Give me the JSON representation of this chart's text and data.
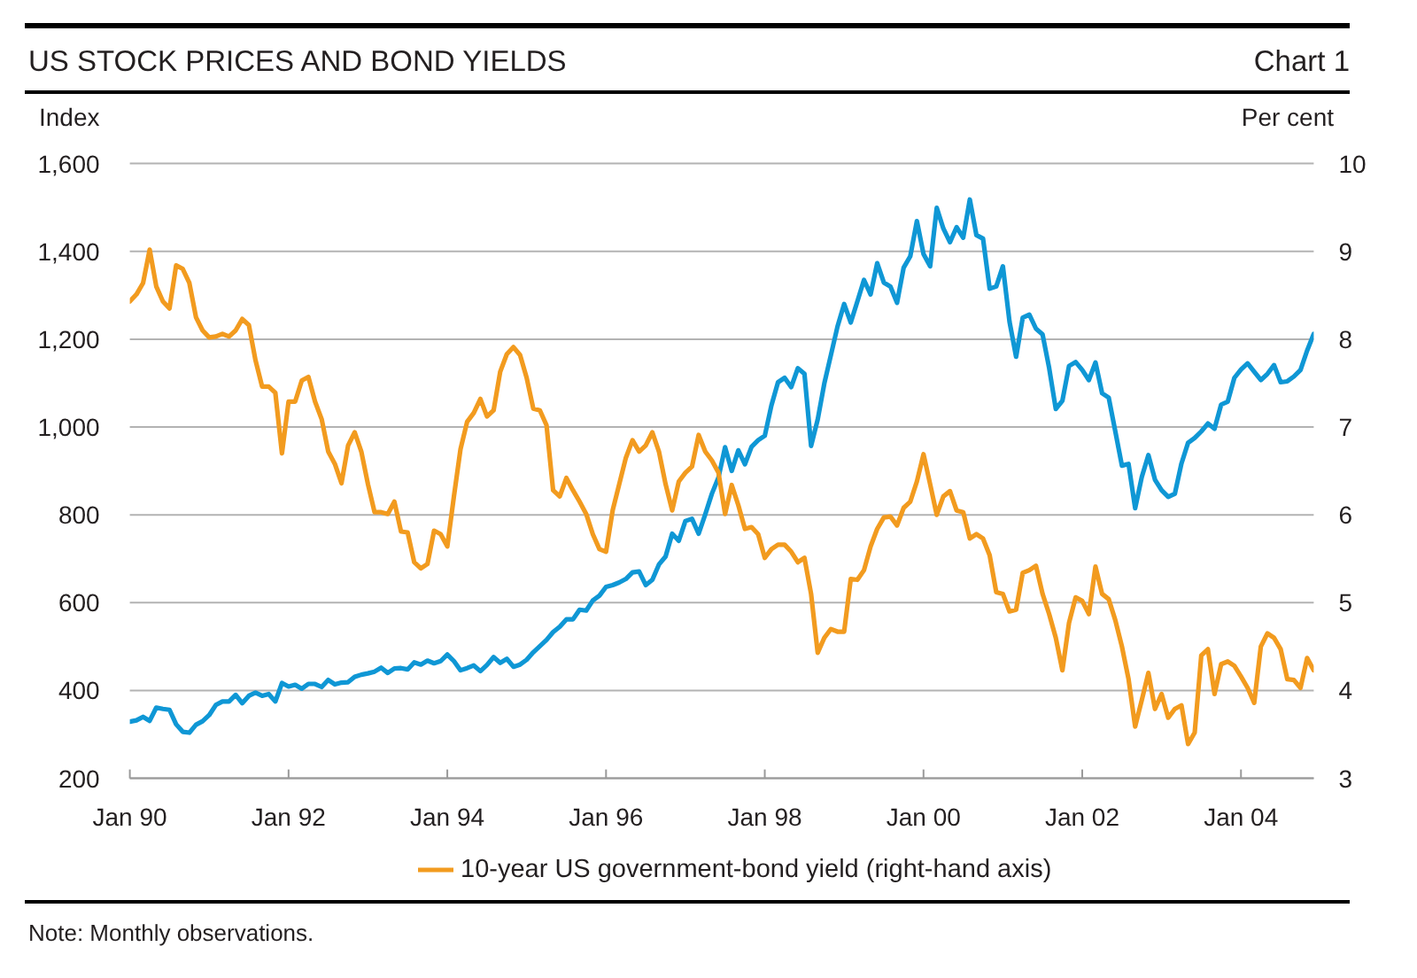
{
  "chart_data": {
    "type": "line",
    "title": "US STOCK PRICES AND BOND YIELDS",
    "subtitle": "Chart 1",
    "ylabel": "Index",
    "y2label": "Per cent",
    "annotations": [
      "Note: Monthly observations."
    ],
    "x": [
      "1990-01",
      "1990-02",
      "1990-03",
      "1990-04",
      "1990-05",
      "1990-06",
      "1990-07",
      "1990-08",
      "1990-09",
      "1990-10",
      "1990-11",
      "1990-12",
      "1991-01",
      "1991-02",
      "1991-03",
      "1991-04",
      "1991-05",
      "1991-06",
      "1991-07",
      "1991-08",
      "1991-09",
      "1991-10",
      "1991-11",
      "1991-12",
      "1992-01",
      "1992-02",
      "1992-03",
      "1992-04",
      "1992-05",
      "1992-06",
      "1992-07",
      "1992-08",
      "1992-09",
      "1992-10",
      "1992-11",
      "1992-12",
      "1993-01",
      "1993-02",
      "1993-03",
      "1993-04",
      "1993-05",
      "1993-06",
      "1993-07",
      "1993-08",
      "1993-09",
      "1993-10",
      "1993-11",
      "1993-12",
      "1994-01",
      "1994-02",
      "1994-03",
      "1994-04",
      "1994-05",
      "1994-06",
      "1994-07",
      "1994-08",
      "1994-09",
      "1994-10",
      "1994-11",
      "1994-12",
      "1995-01",
      "1995-02",
      "1995-03",
      "1995-04",
      "1995-05",
      "1995-06",
      "1995-07",
      "1995-08",
      "1995-09",
      "1995-10",
      "1995-11",
      "1995-12",
      "1996-01",
      "1996-02",
      "1996-03",
      "1996-04",
      "1996-05",
      "1996-06",
      "1996-07",
      "1996-08",
      "1996-09",
      "1996-10",
      "1996-11",
      "1996-12",
      "1997-01",
      "1997-02",
      "1997-03",
      "1997-04",
      "1997-05",
      "1997-06",
      "1997-07",
      "1997-08",
      "1997-09",
      "1997-10",
      "1997-11",
      "1997-12",
      "1998-01",
      "1998-02",
      "1998-03",
      "1998-04",
      "1998-05",
      "1998-06",
      "1998-07",
      "1998-08",
      "1998-09",
      "1998-10",
      "1998-11",
      "1998-12",
      "1999-01",
      "1999-02",
      "1999-03",
      "1999-04",
      "1999-05",
      "1999-06",
      "1999-07",
      "1999-08",
      "1999-09",
      "1999-10",
      "1999-11",
      "1999-12",
      "2000-01",
      "2000-02",
      "2000-03",
      "2000-04",
      "2000-05",
      "2000-06",
      "2000-07",
      "2000-08",
      "2000-09",
      "2000-10",
      "2000-11",
      "2000-12",
      "2001-01",
      "2001-02",
      "2001-03",
      "2001-04",
      "2001-05",
      "2001-06",
      "2001-07",
      "2001-08",
      "2001-09",
      "2001-10",
      "2001-11",
      "2001-12",
      "2002-01",
      "2002-02",
      "2002-03",
      "2002-04",
      "2002-05",
      "2002-06",
      "2002-07",
      "2002-08",
      "2002-09",
      "2002-10",
      "2002-11",
      "2002-12",
      "2003-01",
      "2003-02",
      "2003-03",
      "2003-04",
      "2003-05",
      "2003-06",
      "2003-07",
      "2003-08",
      "2003-09",
      "2003-10",
      "2003-11",
      "2003-12",
      "2004-01",
      "2004-02",
      "2004-03",
      "2004-04",
      "2004-05",
      "2004-06",
      "2004-07",
      "2004-08",
      "2004-09",
      "2004-10",
      "2004-11",
      "2004-12"
    ],
    "xlim": [
      "1990-01",
      "2004-12"
    ],
    "xticks": [
      {
        "value": "1990-01",
        "label": "Jan 90"
      },
      {
        "value": "1992-01",
        "label": "Jan 92"
      },
      {
        "value": "1994-01",
        "label": "Jan 94"
      },
      {
        "value": "1996-01",
        "label": "Jan 96"
      },
      {
        "value": "1998-01",
        "label": "Jan 98"
      },
      {
        "value": "2000-01",
        "label": "Jan 00"
      },
      {
        "value": "2002-01",
        "label": "Jan 02"
      },
      {
        "value": "2004-01",
        "label": "Jan 04"
      }
    ],
    "ylim": [
      200,
      1600
    ],
    "yticks": [
      200,
      400,
      600,
      800,
      {
        "value": 1000,
        "label": "1,000"
      },
      {
        "value": 1200,
        "label": "1,200"
      },
      {
        "value": 1400,
        "label": "1,400"
      },
      {
        "value": 1600,
        "label": "1,600"
      }
    ],
    "y2lim": [
      3,
      10
    ],
    "y2ticks": [
      3,
      4,
      5,
      6,
      7,
      8,
      9,
      10
    ],
    "grid": "y",
    "legend": "bottom",
    "series": [
      {
        "color": "#0f97d5",
        "values": [
          329,
          332,
          340,
          331,
          361,
          358,
          356,
          323,
          306,
          304,
          322,
          330,
          344,
          367,
          375,
          375,
          390,
          371,
          388,
          395,
          388,
          392,
          375,
          417,
          409,
          413,
          404,
          415,
          415,
          408,
          424,
          414,
          418,
          419,
          431,
          436,
          439,
          443,
          452,
          440,
          450,
          451,
          448,
          464,
          459,
          468,
          462,
          467,
          482,
          467,
          446,
          451,
          457,
          444,
          458,
          476,
          463,
          472,
          454,
          459,
          470,
          487,
          501,
          515,
          533,
          545,
          562,
          562,
          584,
          582,
          605,
          616,
          636,
          640,
          646,
          654,
          669,
          671,
          640,
          652,
          687,
          705,
          757,
          741,
          786,
          791,
          757,
          801,
          848,
          885,
          954,
          900,
          947,
          915,
          955,
          970,
          980,
          1049,
          1102,
          1112,
          1091,
          1134,
          1121,
          957,
          1017,
          1099,
          1164,
          1229,
          1280,
          1238,
          1286,
          1335,
          1302,
          1373,
          1329,
          1320,
          1283,
          1363,
          1389,
          1469,
          1394,
          1366,
          1499,
          1452,
          1421,
          1455,
          1431,
          1518,
          1437,
          1429,
          1315,
          1320,
          1366,
          1240,
          1160,
          1249,
          1256,
          1224,
          1211,
          1134,
          1041,
          1060,
          1139,
          1148,
          1130,
          1107,
          1147,
          1077,
          1067,
          990,
          912,
          916,
          815,
          886,
          936,
          880,
          856,
          841,
          848,
          917,
          964,
          975,
          990,
          1008,
          996,
          1051,
          1058,
          1112,
          1131,
          1145,
          1126,
          1107,
          1121,
          1141,
          1102,
          1104,
          1115,
          1130,
          1174,
          1212
        ]
      },
      {
        "name": "10-year US government-bond yield (right-hand axis)",
        "color": "#f29b1f",
        "axis": "y2",
        "values": [
          8.43,
          8.51,
          8.64,
          9.02,
          8.6,
          8.43,
          8.35,
          8.84,
          8.8,
          8.64,
          8.25,
          8.1,
          8.02,
          8.03,
          8.06,
          8.03,
          8.1,
          8.23,
          8.16,
          7.76,
          7.46,
          7.46,
          7.39,
          6.7,
          7.29,
          7.29,
          7.53,
          7.57,
          7.29,
          7.09,
          6.72,
          6.58,
          6.36,
          6.79,
          6.94,
          6.72,
          6.35,
          6.03,
          6.03,
          6.01,
          6.15,
          5.81,
          5.8,
          5.46,
          5.39,
          5.44,
          5.82,
          5.78,
          5.64,
          6.21,
          6.75,
          7.06,
          7.16,
          7.32,
          7.12,
          7.19,
          7.63,
          7.83,
          7.91,
          7.82,
          7.56,
          7.21,
          7.19,
          7.02,
          6.28,
          6.21,
          6.42,
          6.28,
          6.15,
          6.01,
          5.78,
          5.61,
          5.58,
          6.05,
          6.35,
          6.65,
          6.85,
          6.72,
          6.79,
          6.94,
          6.72,
          6.35,
          6.05,
          6.38,
          6.48,
          6.55,
          6.91,
          6.72,
          6.62,
          6.48,
          6.01,
          6.34,
          6.11,
          5.84,
          5.86,
          5.78,
          5.51,
          5.61,
          5.66,
          5.66,
          5.58,
          5.46,
          5.51,
          5.1,
          4.43,
          4.6,
          4.7,
          4.67,
          4.67,
          5.27,
          5.26,
          5.37,
          5.64,
          5.84,
          5.97,
          5.98,
          5.88,
          6.08,
          6.15,
          6.38,
          6.69,
          6.35,
          6.0,
          6.21,
          6.27,
          6.05,
          6.03,
          5.73,
          5.78,
          5.73,
          5.54,
          5.12,
          5.1,
          4.9,
          4.92,
          5.34,
          5.37,
          5.42,
          5.1,
          4.87,
          4.6,
          4.23,
          4.77,
          5.06,
          5.02,
          4.87,
          5.41,
          5.1,
          5.04,
          4.8,
          4.5,
          4.13,
          3.59,
          3.89,
          4.2,
          3.79,
          3.96,
          3.69,
          3.79,
          3.83,
          3.39,
          3.52,
          4.4,
          4.47,
          3.96,
          4.3,
          4.33,
          4.28,
          4.16,
          4.03,
          3.86,
          4.5,
          4.65,
          4.6,
          4.47,
          4.13,
          4.12,
          4.03,
          4.37,
          4.23
        ]
      }
    ]
  }
}
